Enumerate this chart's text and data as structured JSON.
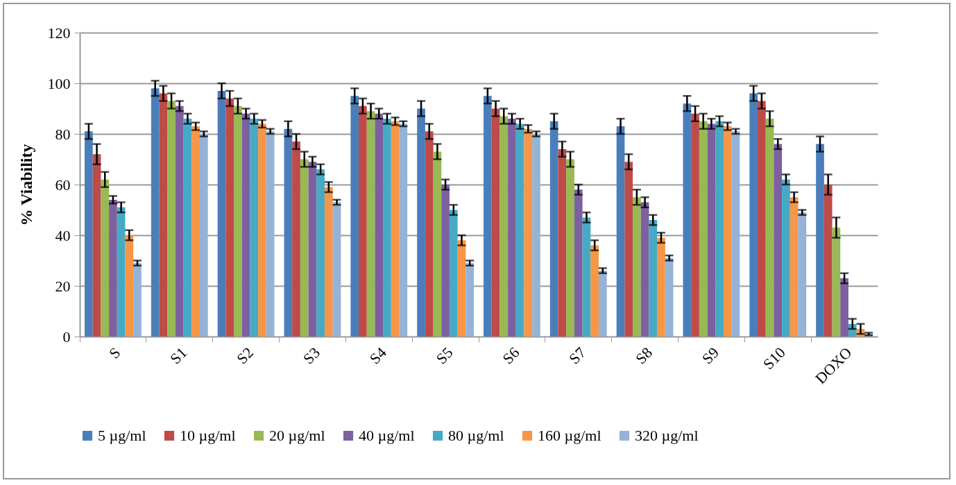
{
  "chart_data": {
    "type": "bar",
    "ylabel": "% Viability",
    "categories": [
      "S",
      "S1",
      "S2",
      "S3",
      "S4",
      "S5",
      "S6",
      "S7",
      "S8",
      "S9",
      "S10",
      "DOXO"
    ],
    "series": [
      {
        "name": "5 µg/ml",
        "color": "#4a7ebb",
        "values": [
          81,
          98,
          97,
          82,
          95,
          90,
          95,
          85,
          83,
          92,
          96,
          76
        ],
        "errors": [
          3,
          3,
          3,
          3,
          3,
          3,
          3,
          3,
          3,
          3,
          3,
          3
        ]
      },
      {
        "name": "10 µg/ml",
        "color": "#be4b48",
        "values": [
          72,
          96,
          94,
          77,
          91,
          81,
          90,
          74,
          69,
          88,
          93,
          60
        ],
        "errors": [
          4,
          3,
          3,
          3,
          3,
          3,
          3,
          3,
          3,
          3,
          3,
          4
        ]
      },
      {
        "name": "20 µg/ml",
        "color": "#98b954",
        "values": [
          62,
          93,
          91,
          70,
          89,
          73,
          87,
          70,
          55,
          85,
          86,
          43
        ],
        "errors": [
          3,
          3,
          3,
          3,
          3,
          3,
          3,
          3,
          3,
          3,
          3,
          4
        ]
      },
      {
        "name": "40 µg/ml",
        "color": "#7d60a0",
        "values": [
          54,
          91,
          88,
          69,
          88,
          60,
          86,
          58,
          53,
          84,
          76,
          23
        ],
        "errors": [
          1.5,
          2,
          2,
          2,
          2,
          2,
          2,
          2,
          2,
          2,
          2,
          2
        ]
      },
      {
        "name": "80 µg/ml",
        "color": "#46aac5",
        "values": [
          51,
          86,
          86,
          66,
          86,
          50,
          84,
          47,
          46,
          85,
          62,
          5
        ],
        "errors": [
          2,
          2,
          2,
          2,
          2,
          2,
          2,
          2,
          2,
          2,
          2,
          2
        ]
      },
      {
        "name": "160 µg/ml",
        "color": "#f79646",
        "values": [
          40,
          83,
          84,
          59,
          85,
          38,
          82,
          36,
          39,
          83,
          55,
          3
        ],
        "errors": [
          2,
          1.5,
          1.5,
          2,
          1.5,
          2,
          1.5,
          2,
          2,
          1.5,
          2,
          2
        ]
      },
      {
        "name": "320 µg/ml",
        "color": "#95b3d7",
        "values": [
          29,
          80,
          81,
          53,
          84,
          29,
          80,
          26,
          31,
          81,
          49,
          1
        ],
        "errors": [
          1,
          1,
          1,
          1,
          1,
          1,
          1,
          1,
          1,
          1,
          1,
          0.5
        ]
      }
    ],
    "ylim": [
      0,
      120
    ],
    "yticks": [
      0,
      20,
      40,
      60,
      80,
      100,
      120
    ],
    "grid": "y",
    "legend": "bottom"
  }
}
